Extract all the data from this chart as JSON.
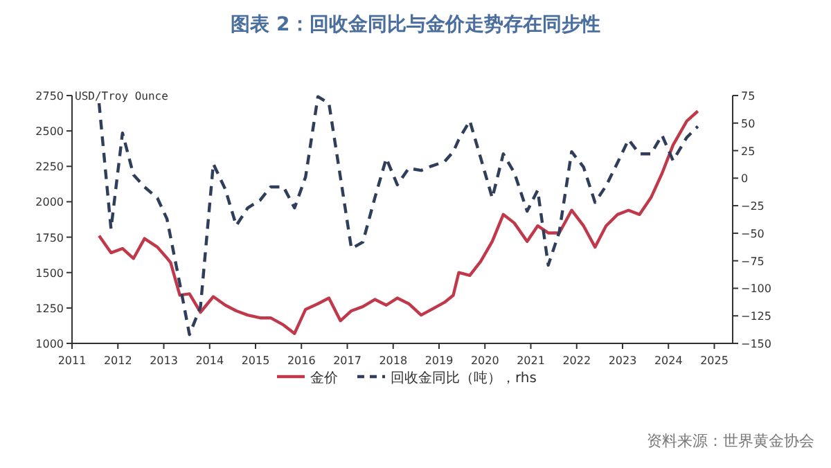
{
  "chart_data": {
    "type": "line",
    "title": "图表 2：回收金同比与金价走势存在同步性",
    "ylabel": "USD/Troy Ounce",
    "annotations": [
      "资料来源：世界黄金协会"
    ],
    "xlim": [
      2011,
      2025.4
    ],
    "xticks": [
      2011,
      2012,
      2013,
      2014,
      2015,
      2016,
      2017,
      2018,
      2019,
      2020,
      2021,
      2022,
      2023,
      2024,
      2025
    ],
    "ylim": [
      1000,
      2750
    ],
    "yticks": [
      1000,
      1250,
      1500,
      1750,
      2000,
      2250,
      2500,
      2750
    ],
    "y2lim": [
      -150,
      75
    ],
    "y2ticks": [
      -150,
      -125,
      -100,
      -75,
      -50,
      -25,
      0,
      25,
      50,
      75
    ],
    "legend": "bottom",
    "grid": false,
    "series": [
      {
        "name": "金价",
        "color": "#c0394b",
        "line_style": "solid",
        "x": [
          2011.59,
          2011.85,
          2012.1,
          2012.34,
          2012.58,
          2012.86,
          2013.05,
          2013.15,
          2013.35,
          2013.56,
          2013.8,
          2014.08,
          2014.34,
          2014.58,
          2014.83,
          2015.1,
          2015.33,
          2015.61,
          2015.85,
          2016.09,
          2016.36,
          2016.6,
          2016.85,
          2017.09,
          2017.34,
          2017.6,
          2017.85,
          2018.09,
          2018.34,
          2018.61,
          2018.84,
          2019.12,
          2019.31,
          2019.43,
          2019.67,
          2019.91,
          2020.16,
          2020.4,
          2020.64,
          2020.92,
          2021.15,
          2021.38,
          2021.62,
          2021.89,
          2022.15,
          2022.4,
          2022.64,
          2022.89,
          2023.13,
          2023.37,
          2023.62,
          2023.86,
          2024.1,
          2024.4,
          2024.64
        ],
        "values": [
          1760,
          1640,
          1670,
          1600,
          1740,
          1680,
          1610,
          1570,
          1340,
          1350,
          1220,
          1330,
          1270,
          1230,
          1200,
          1180,
          1180,
          1130,
          1070,
          1240,
          1280,
          1320,
          1160,
          1230,
          1260,
          1310,
          1270,
          1320,
          1280,
          1200,
          1240,
          1290,
          1340,
          1500,
          1480,
          1580,
          1720,
          1910,
          1850,
          1720,
          1830,
          1780,
          1780,
          1940,
          1830,
          1680,
          1830,
          1910,
          1940,
          1910,
          2030,
          2200,
          2400,
          2570,
          2640
        ]
      },
      {
        "name": "回收金同比（吨），rhs",
        "color": "#2f3e5a",
        "line_style": "dashed",
        "axis": "y2",
        "x": [
          2011.59,
          2011.85,
          2012.1,
          2012.34,
          2012.58,
          2012.86,
          2013.07,
          2013.35,
          2013.56,
          2013.8,
          2014.08,
          2014.34,
          2014.58,
          2014.83,
          2015.1,
          2015.33,
          2015.61,
          2015.85,
          2016.09,
          2016.36,
          2016.6,
          2016.85,
          2017.09,
          2017.34,
          2017.6,
          2017.85,
          2018.09,
          2018.34,
          2018.61,
          2018.84,
          2019.12,
          2019.31,
          2019.43,
          2019.67,
          2019.91,
          2020.16,
          2020.4,
          2020.64,
          2020.92,
          2021.15,
          2021.38,
          2021.62,
          2021.89,
          2022.15,
          2022.4,
          2022.64,
          2022.89,
          2023.13,
          2023.37,
          2023.62,
          2023.86,
          2024.1,
          2024.4,
          2024.64
        ],
        "values": [
          68,
          -46,
          41,
          3,
          -8,
          -18,
          -37,
          -96,
          -142,
          -117,
          13,
          -10,
          -43,
          -27,
          -20,
          -8,
          -8,
          -27,
          1,
          74,
          68,
          1,
          -64,
          -58,
          -18,
          18,
          -6,
          9,
          7,
          11,
          15,
          24,
          35,
          52,
          18,
          -18,
          22,
          5,
          -30,
          -11,
          -79,
          -49,
          24,
          10,
          -22,
          -7,
          14,
          35,
          22,
          22,
          39,
          16,
          37,
          47
        ]
      }
    ]
  }
}
